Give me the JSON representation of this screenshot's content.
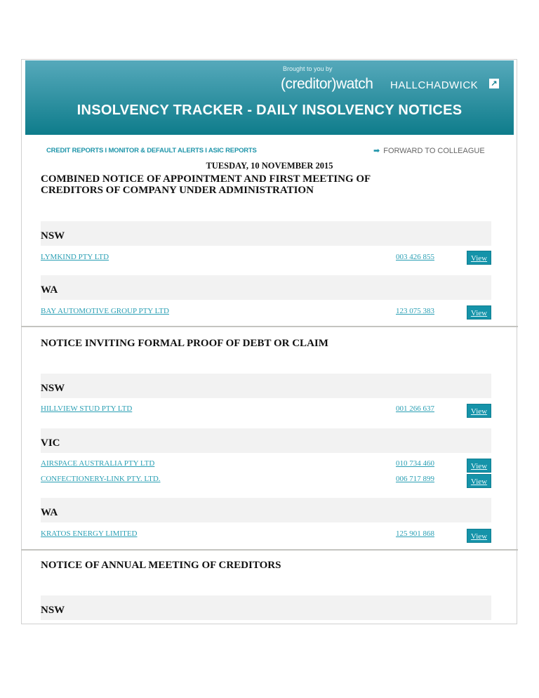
{
  "header": {
    "brought_by": "Brought to you by",
    "brand1": "(creditor)watch",
    "brand2": "HALLCHADWICK",
    "title": "INSOLVENCY TRACKER - DAILY INSOLVENCY NOTICES",
    "nav": "CREDIT REPORTS I MONITOR & DEFAULT ALERTS I ASIC REPORTS",
    "forward": "FORWARD TO COLLEAGUE",
    "forward_icon": "arrow-right-icon",
    "accent": "#1593a9"
  },
  "date": "TUESDAY, 10 NOVEMBER 2015",
  "view_label": "View",
  "sections": [
    {
      "title_line1": "COMBINED NOTICE OF APPOINTMENT AND FIRST MEETING OF",
      "title_line2": "CREDITORS OF COMPANY UNDER ADMINISTRATION",
      "groups": [
        {
          "state": "NSW",
          "rows": [
            {
              "name": "LYMKIND PTY LTD",
              "acn": "003 426 855"
            }
          ]
        },
        {
          "state": "WA",
          "rows": [
            {
              "name": "BAY AUTOMOTIVE GROUP PTY LTD",
              "acn": "123 075 383"
            }
          ]
        }
      ]
    },
    {
      "title": "NOTICE INVITING FORMAL PROOF OF DEBT OR CLAIM",
      "groups": [
        {
          "state": "NSW",
          "rows": [
            {
              "name": "HILLVIEW STUD PTY LTD",
              "acn": "001 266 637"
            }
          ]
        },
        {
          "state": "VIC",
          "rows": [
            {
              "name": "AIRSPACE AUSTRALIA PTY LTD",
              "acn": "010 734 460"
            },
            {
              "name": "CONFECTIONERY-LINK PTY. LTD.",
              "acn": "006 717 899"
            }
          ]
        },
        {
          "state": "WA",
          "rows": [
            {
              "name": "KRATOS ENERGY LIMITED",
              "acn": "125 901 868"
            }
          ]
        }
      ]
    },
    {
      "title": "NOTICE OF ANNUAL MEETING OF CREDITORS",
      "groups": [
        {
          "state": "NSW",
          "rows": []
        }
      ]
    }
  ]
}
